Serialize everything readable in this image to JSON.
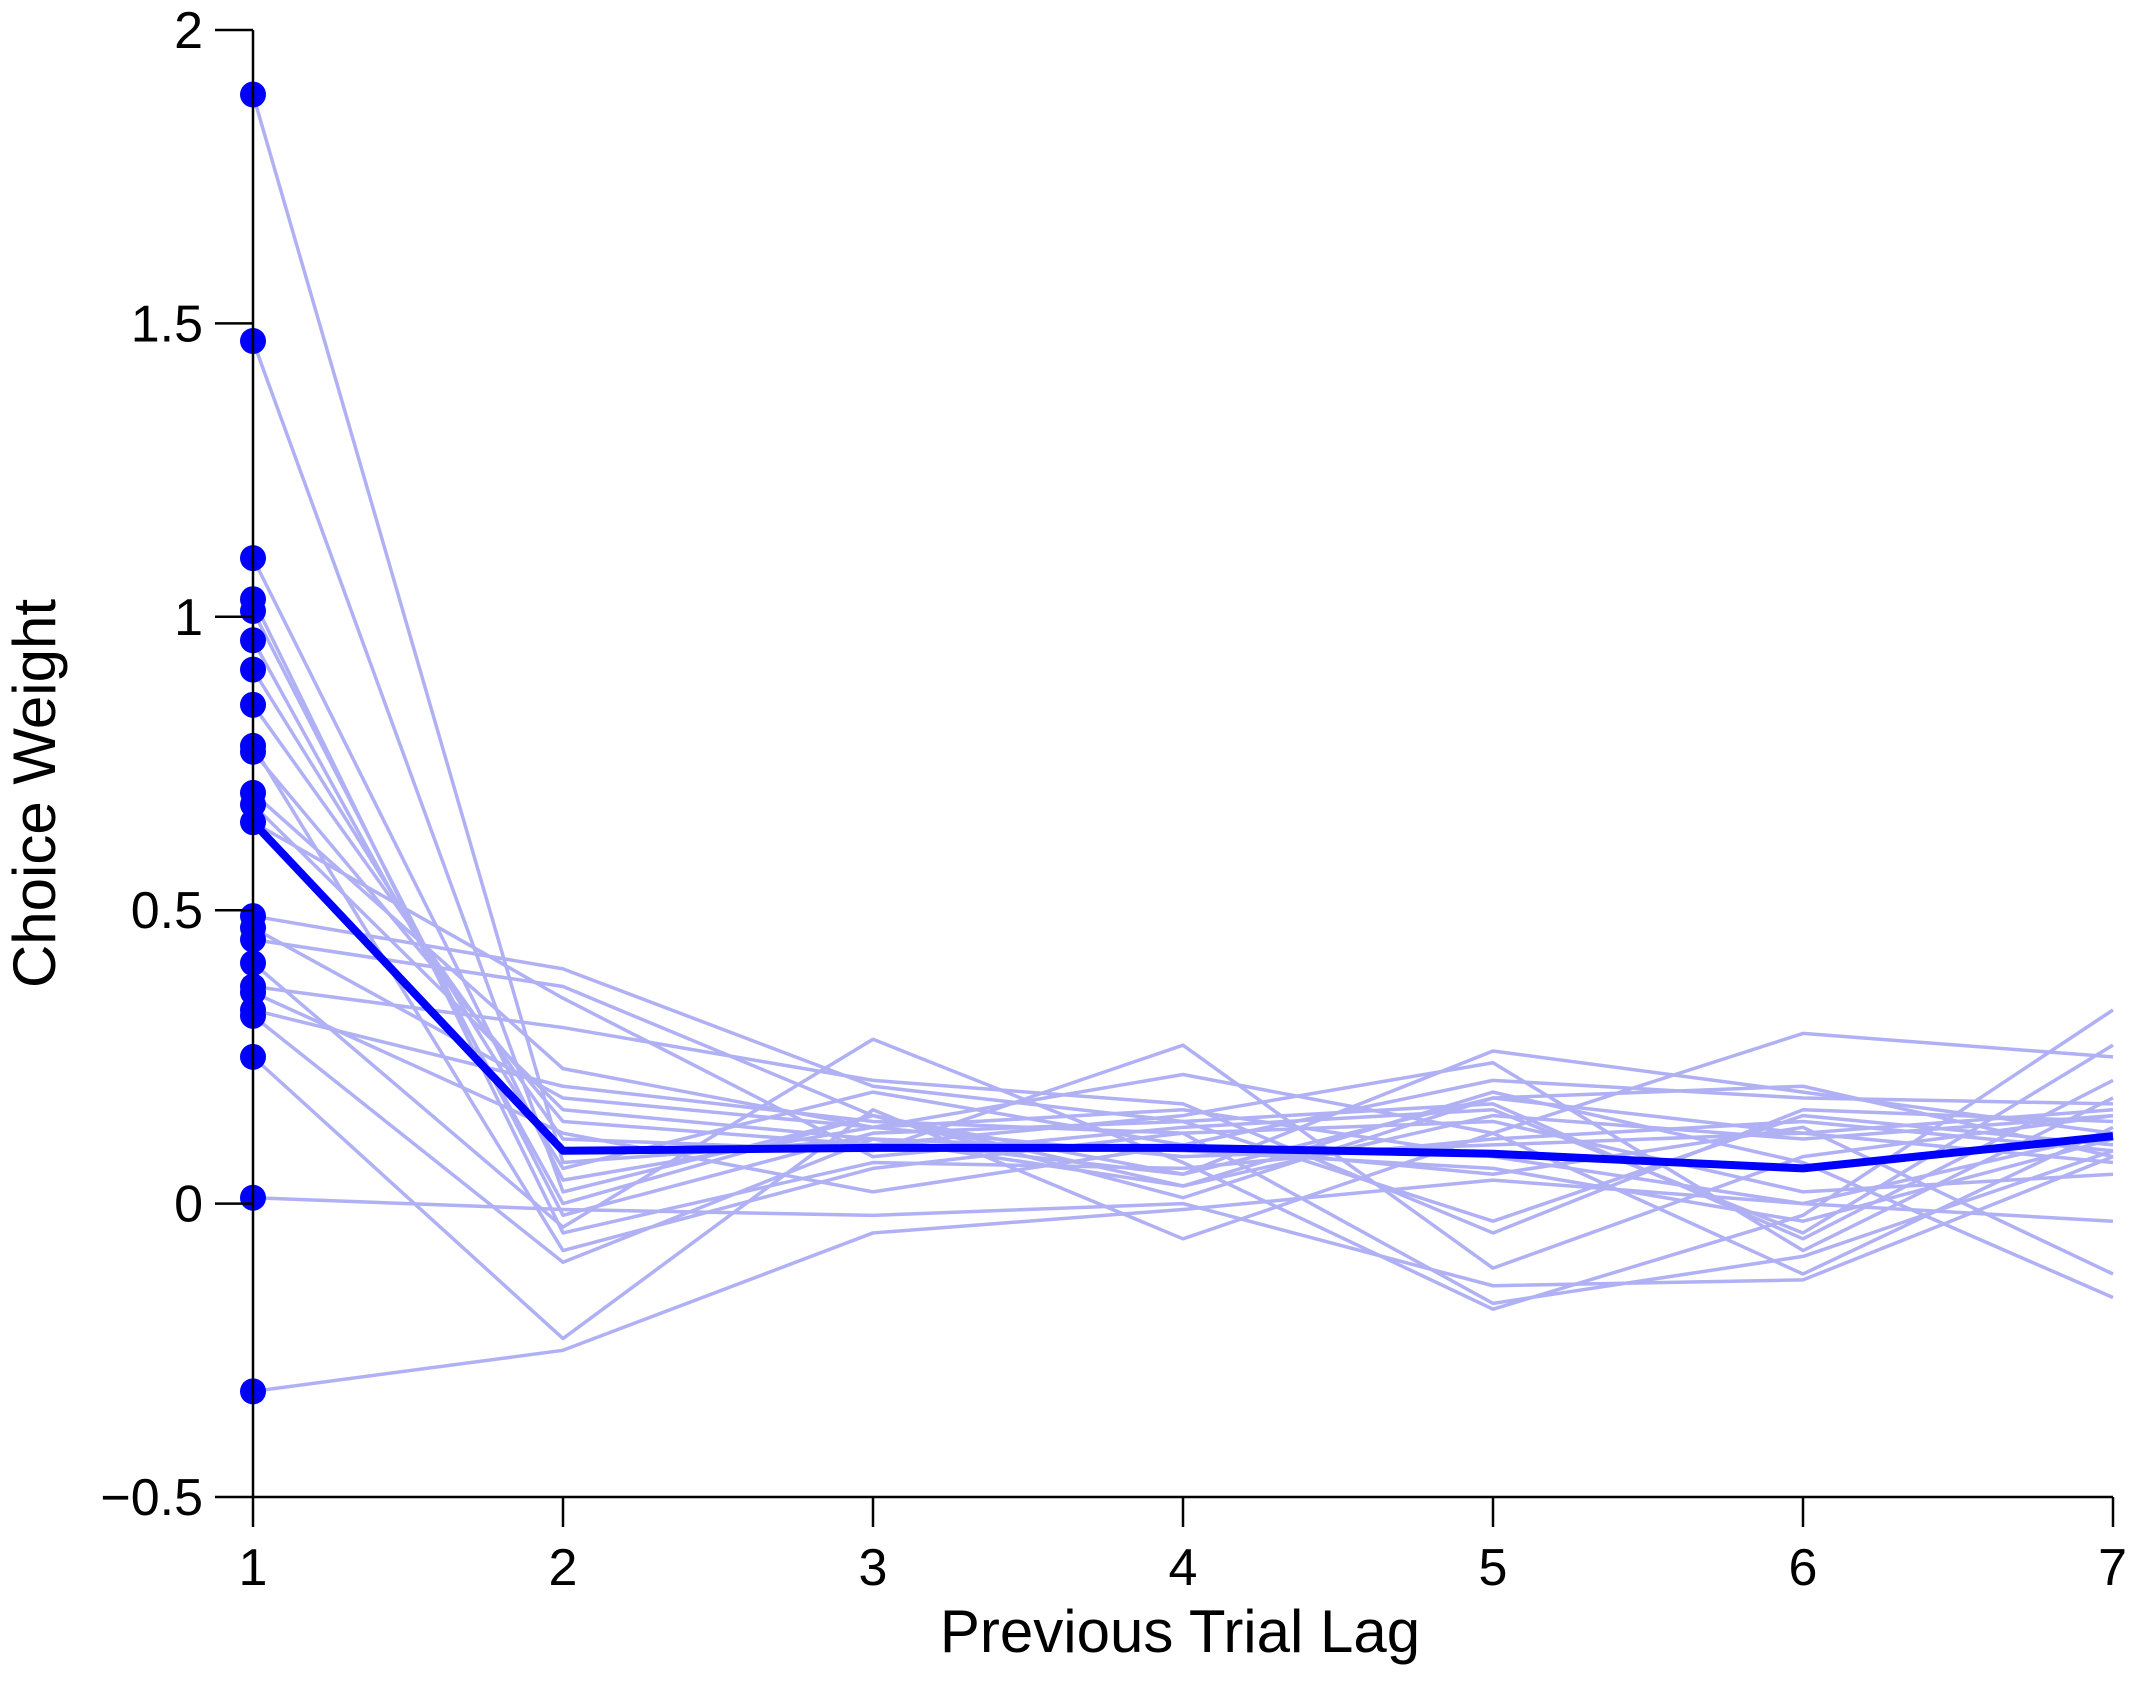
{
  "chart_data": {
    "type": "line",
    "title": "",
    "xlabel": "Previous Trial Lag",
    "ylabel": "Choice Weight",
    "xlim": [
      1,
      7
    ],
    "ylim": [
      -0.5,
      2
    ],
    "x": [
      1,
      2,
      3,
      4,
      5,
      6,
      7
    ],
    "x_ticks": [
      "1",
      "2",
      "3",
      "4",
      "5",
      "6",
      "7"
    ],
    "y_ticks": [
      {
        "value": -0.5,
        "label": "−0.5"
      },
      {
        "value": 0,
        "label": "0"
      },
      {
        "value": 0.5,
        "label": "0.5"
      },
      {
        "value": 1,
        "label": "1"
      },
      {
        "value": 1.5,
        "label": "1.5"
      },
      {
        "value": 2,
        "label": "2"
      }
    ],
    "grid": false,
    "legend": "none",
    "colors": {
      "individual": "#b0b0f5",
      "mean": "#0000ff",
      "markers": "#0000ff",
      "axis": "#000000"
    },
    "series": [
      {
        "values": [
          1.89,
          0.07,
          0.11,
          0.09,
          0.06,
          -0.03,
          0.11
        ]
      },
      {
        "values": [
          1.47,
          0.02,
          0.15,
          0.05,
          0.26,
          0.19,
          0.12
        ]
      },
      {
        "values": [
          1.1,
          0.04,
          0.13,
          0.08,
          0.1,
          0.12,
          0.16
        ]
      },
      {
        "values": [
          1.03,
          -0.05,
          0.07,
          0.06,
          0.11,
          0.14,
          0.09
        ]
      },
      {
        "values": [
          1.01,
          -0.02,
          0.12,
          0.14,
          0.17,
          -0.06,
          0.21
        ]
      },
      {
        "values": [
          0.96,
          0.0,
          0.15,
          0.01,
          0.18,
          0.2,
          0.08
        ]
      },
      {
        "values": [
          0.91,
          0.06,
          0.19,
          0.1,
          0.05,
          0.13,
          -0.12
        ]
      },
      {
        "values": [
          0.85,
          0.11,
          0.09,
          0.27,
          -0.11,
          0.08,
          0.15
        ]
      },
      {
        "values": [
          0.78,
          -0.08,
          0.06,
          0.12,
          0.14,
          0.02,
          0.05
        ]
      },
      {
        "values": [
          0.77,
          0.14,
          0.1,
          0.15,
          0.24,
          -0.08,
          0.18
        ]
      },
      {
        "values": [
          0.7,
          0.23,
          0.13,
          0.22,
          0.12,
          -0.12,
          0.13
        ]
      },
      {
        "values": [
          0.68,
          0.16,
          0.11,
          0.05,
          0.18,
          0.12,
          0.07
        ]
      },
      {
        "values": [
          0.65,
          0.35,
          0.08,
          0.13,
          0.16,
          -0.05,
          0.27
        ]
      },
      {
        "values": [
          0.49,
          0.4,
          0.2,
          0.14,
          -0.03,
          0.15,
          0.1
        ]
      },
      {
        "values": [
          0.47,
          0.18,
          0.13,
          0.16,
          0.08,
          0.0,
          0.12
        ]
      },
      {
        "values": [
          0.45,
          0.37,
          0.15,
          0.03,
          0.15,
          0.11,
          0.15
        ]
      },
      {
        "values": [
          0.41,
          -0.04,
          0.28,
          0.07,
          -0.18,
          -0.02,
          0.33
        ]
      },
      {
        "values": [
          0.37,
          0.3,
          0.21,
          0.17,
          -0.05,
          0.16,
          0.14
        ]
      },
      {
        "values": [
          0.36,
          0.12,
          0.02,
          0.1,
          0.21,
          0.18,
          0.17
        ]
      },
      {
        "values": [
          0.33,
          0.2,
          0.14,
          0.12,
          -0.17,
          -0.09,
          0.09
        ]
      },
      {
        "values": [
          0.32,
          -0.1,
          0.11,
          0.03,
          0.19,
          0.07,
          -0.16
        ]
      },
      {
        "values": [
          0.25,
          -0.23,
          0.16,
          -0.06,
          0.12,
          0.29,
          0.25
        ]
      },
      {
        "values": [
          0.01,
          -0.01,
          -0.02,
          0.0,
          -0.14,
          -0.13,
          0.08
        ]
      },
      {
        "values": [
          -0.32,
          -0.25,
          -0.05,
          -0.01,
          0.04,
          0.0,
          -0.03
        ]
      }
    ],
    "mean_series": {
      "values": [
        0.65,
        0.09,
        0.095,
        0.095,
        0.085,
        0.06,
        0.115
      ]
    },
    "markers_at_x1": [
      1.89,
      1.47,
      1.1,
      1.03,
      1.01,
      0.96,
      0.91,
      0.85,
      0.78,
      0.77,
      0.7,
      0.68,
      0.65,
      0.49,
      0.47,
      0.45,
      0.41,
      0.37,
      0.36,
      0.33,
      0.32,
      0.25,
      0.01,
      -0.32
    ]
  }
}
